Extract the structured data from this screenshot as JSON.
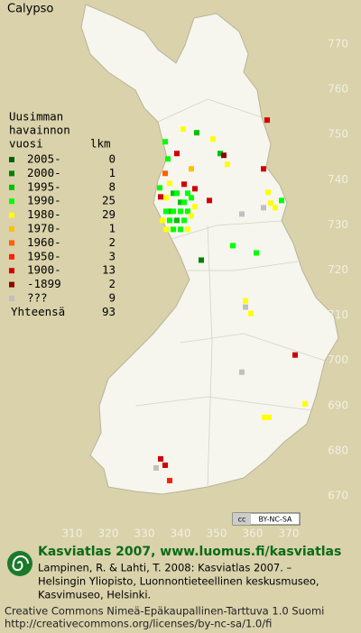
{
  "map": {
    "title": "Calypso",
    "xticks": [
      310,
      320,
      330,
      340,
      350,
      360,
      370
    ],
    "yticks": [
      770,
      760,
      750,
      740,
      730,
      720,
      710,
      700,
      690,
      680,
      670
    ],
    "legend": {
      "header": [
        "Uusimman",
        "havainnon",
        "vuosi"
      ],
      "count_header": "lkm",
      "classes": [
        {
          "label": "2005-",
          "count": 0,
          "color": "#006400",
          "squares": []
        },
        {
          "label": "2000-",
          "count": 1,
          "color": "#008000",
          "squares": [
            [
              345.75,
              722.2
            ]
          ]
        },
        {
          "label": "1995-",
          "count": 8,
          "color": "#00c000",
          "squares": [
            [
              344.5,
              750.4
            ],
            [
              351,
              745.8
            ],
            [
              338,
              737
            ],
            [
              340,
              735
            ],
            [
              337,
              733
            ],
            [
              339,
              731
            ]
          ]
        },
        {
          "label": "1990-",
          "count": 25,
          "color": "#00ff00",
          "squares": [
            [
              335.75,
              748.4
            ],
            [
              336.5,
              744.6
            ],
            [
              334.25,
              738.2
            ],
            [
              368,
              735.4
            ],
            [
              354.5,
              725.4
            ],
            [
              361,
              723.8
            ],
            [
              342,
              737
            ],
            [
              341,
              735
            ],
            [
              336,
              733
            ],
            [
              338,
              733
            ],
            [
              340,
              733
            ],
            [
              342,
              733
            ],
            [
              337,
              731
            ],
            [
              341,
              731
            ],
            [
              338,
              729
            ],
            [
              340,
              729
            ],
            [
              343,
              736
            ],
            [
              339,
              737
            ]
          ]
        },
        {
          "label": "1980-",
          "count": 29,
          "color": "#ffff00",
          "squares": [
            [
              340.75,
              751.2
            ],
            [
              349,
              749
            ],
            [
              353,
              743.4
            ],
            [
              337,
              739.2
            ],
            [
              364.25,
              737.2
            ],
            [
              365,
              734.8
            ],
            [
              366.25,
              733.8
            ],
            [
              358,
              713.2
            ],
            [
              359.5,
              710.4
            ],
            [
              374.5,
              690.4
            ],
            [
              363.25,
              687.4
            ],
            [
              364.5,
              687.4
            ],
            [
              336,
              736
            ],
            [
              344,
              734
            ],
            [
              343,
              732
            ],
            [
              335,
              731
            ],
            [
              336,
              729
            ],
            [
              342,
              729
            ]
          ]
        },
        {
          "label": "1970-",
          "count": 1,
          "color": "#ffc000",
          "squares": [
            [
              343,
              742.4
            ]
          ]
        },
        {
          "label": "1960-",
          "count": 2,
          "color": "#ff6000",
          "squares": [
            [
              335.75,
              741.4
            ]
          ]
        },
        {
          "label": "1950-",
          "count": 3,
          "color": "#ff2000",
          "squares": [
            [
              337,
              673.4
            ]
          ]
        },
        {
          "label": "1900-",
          "count": 13,
          "color": "#d00000",
          "squares": [
            [
              364,
              753.2
            ],
            [
              339,
              745.8
            ],
            [
              363,
              742.4
            ],
            [
              334.5,
              736.2
            ],
            [
              348,
              735.4
            ],
            [
              371.75,
              701.2
            ],
            [
              334.5,
              678.2
            ],
            [
              335.75,
              676.8
            ],
            [
              344,
              738
            ],
            [
              341,
              739
            ]
          ]
        },
        {
          "label": "-1899",
          "count": 2,
          "color": "#900000",
          "squares": [
            [
              352,
              745.4
            ]
          ]
        },
        {
          "label": "???",
          "count": 9,
          "color": "#c0c0c0",
          "squares": [
            [
              363,
              733.8
            ],
            [
              357,
              732.4
            ],
            [
              358,
              711.8
            ],
            [
              357,
              697.4
            ],
            [
              333.25,
              676.2
            ]
          ]
        }
      ],
      "total_label": "Yhteensä",
      "total": 93
    },
    "badge": [
      "cc",
      "BY-NC-SA"
    ]
  },
  "footer": {
    "heading": "Kasviatlas 2007, www.luomus.fi/kasviatlas",
    "citation": [
      "Lampinen, R. & Lahti, T. 2008: Kasviatlas 2007. –",
      "Helsingin Yliopisto, Luonnontieteellinen keskusmuseo,",
      "Kasvimuseo, Helsinki."
    ],
    "license": [
      "Creative Commons Nimeä-Epäkaupallinen-Tarttuva 1.0 Suomi",
      "http://creativecommons.org/licenses/by-nc-sa/1.0/fi"
    ]
  }
}
